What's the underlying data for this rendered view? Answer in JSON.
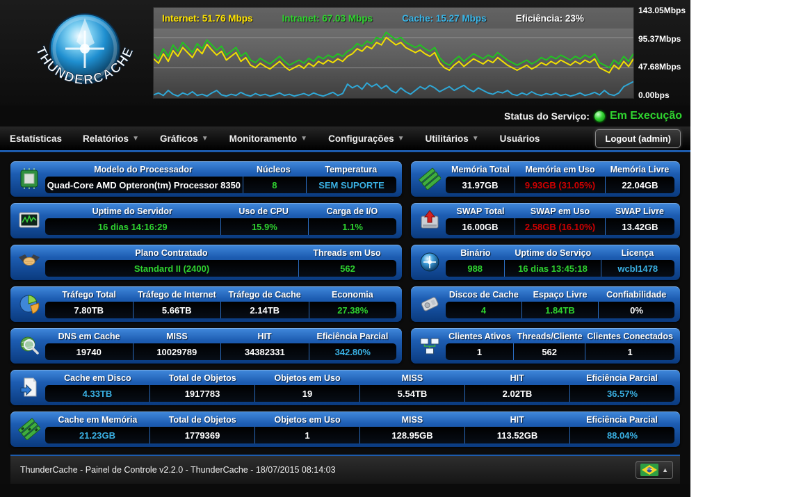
{
  "logo": {
    "text": "THUNDERCACHE"
  },
  "chart": {
    "type": "line",
    "max": 143.05,
    "legend": [
      {
        "name": "internet",
        "text": "Internet: 51.76 Mbps",
        "color": "#ffe400"
      },
      {
        "name": "intranet",
        "text": "Intranet: 67.03 Mbps",
        "color": "#2fd42f"
      },
      {
        "name": "cache",
        "text": "Cache: 15.27 Mbps",
        "color": "#3ab6e8"
      },
      {
        "name": "eficiencia",
        "text": "Eficiência: 23%",
        "color": "#ffffff"
      }
    ],
    "axis_labels": [
      "143.05Mbps",
      "95.37Mbps",
      "47.68Mbps",
      "0.00bps"
    ],
    "series": [
      {
        "name": "internet",
        "color": "#f2e000",
        "values": [
          62,
          55,
          70,
          58,
          75,
          66,
          80,
          72,
          64,
          78,
          70,
          85,
          76,
          68,
          74,
          60,
          66,
          72,
          58,
          64,
          52,
          48,
          55,
          50,
          46,
          52,
          58,
          50,
          44,
          48,
          52,
          47,
          55,
          50,
          58,
          54,
          60,
          56,
          62,
          58,
          66,
          70,
          78,
          74,
          82,
          78,
          88,
          84,
          96,
          90,
          84,
          88,
          80,
          76,
          72,
          76,
          70,
          66,
          72,
          56,
          48,
          44,
          52,
          58,
          50,
          56,
          62,
          58,
          54,
          60,
          56,
          64,
          58,
          52,
          48,
          44,
          48,
          52,
          46,
          50,
          56,
          52,
          58,
          54,
          60,
          56,
          52,
          58,
          54,
          60,
          56,
          62,
          48,
          44,
          40,
          52,
          46,
          58,
          50,
          62
        ]
      },
      {
        "name": "intranet",
        "color": "#21c421",
        "values": [
          70,
          62,
          78,
          66,
          84,
          74,
          88,
          80,
          72,
          86,
          78,
          92,
          84,
          76,
          82,
          68,
          74,
          80,
          66,
          72,
          60,
          56,
          63,
          58,
          54,
          60,
          66,
          58,
          52,
          56,
          60,
          55,
          63,
          58,
          66,
          62,
          68,
          64,
          70,
          66,
          74,
          78,
          86,
          82,
          90,
          86,
          96,
          92,
          104,
          98,
          92,
          96,
          88,
          84,
          80,
          84,
          78,
          74,
          80,
          64,
          56,
          52,
          60,
          66,
          58,
          64,
          70,
          66,
          62,
          68,
          64,
          72,
          66,
          60,
          56,
          52,
          56,
          60,
          54,
          58,
          64,
          60,
          66,
          62,
          68,
          64,
          60,
          66,
          62,
          68,
          64,
          70,
          56,
          52,
          48,
          60,
          54,
          66,
          58,
          70
        ]
      },
      {
        "name": "cache",
        "color": "#2fa7d6",
        "values": [
          5,
          8,
          4,
          12,
          6,
          3,
          8,
          5,
          10,
          4,
          6,
          3,
          8,
          12,
          5,
          3,
          6,
          4,
          9,
          5,
          3,
          7,
          4,
          6,
          3,
          5,
          8,
          4,
          6,
          3,
          5,
          7,
          4,
          8,
          5,
          3,
          6,
          9,
          4,
          7,
          22,
          16,
          20,
          14,
          24,
          18,
          22,
          15,
          20,
          12,
          8,
          16,
          10,
          6,
          12,
          18,
          14,
          20,
          16,
          10,
          14,
          18,
          12,
          16,
          20,
          14,
          10,
          16,
          12,
          8,
          6,
          10,
          8,
          12,
          6,
          4,
          8,
          5,
          10,
          6,
          4,
          7,
          5,
          8,
          4,
          6,
          3,
          5,
          8,
          4,
          6,
          9,
          5,
          12,
          6,
          4,
          8,
          18,
          22,
          26
        ]
      }
    ]
  },
  "status": {
    "label": "Status do Serviço:",
    "value": "Em Execução",
    "color": "#2fd42f"
  },
  "nav": {
    "items": [
      {
        "label": "Estatísticas",
        "dropdown": false
      },
      {
        "label": "Relatórios",
        "dropdown": true
      },
      {
        "label": "Gráficos",
        "dropdown": true
      },
      {
        "label": "Monitoramento",
        "dropdown": true
      },
      {
        "label": "Configurações",
        "dropdown": true
      },
      {
        "label": "Utilitários",
        "dropdown": true
      },
      {
        "label": "Usuários",
        "dropdown": false
      }
    ],
    "logout_label": "Logout (admin)"
  },
  "colors": {
    "green": "#2fd42f",
    "cyan": "#3ab1e4",
    "red": "#d10000",
    "white": "#ffffff",
    "accent_blue": "#1d5cae"
  },
  "cards": {
    "processor": {
      "icon": "cpu-icon",
      "cells": [
        {
          "label": "Modelo do Processador",
          "value": "Quad-Core AMD Opteron(tm) Processor 8350",
          "color": "#ffffff"
        },
        {
          "label": "Núcleos",
          "value": "8",
          "color": "#2fd42f"
        },
        {
          "label": "Temperatura",
          "value": "SEM SUPORTE",
          "color": "#3ab1e4"
        }
      ]
    },
    "memoria": {
      "icon": "memory-icon",
      "cells": [
        {
          "label": "Memória Total",
          "value": "31.97GB",
          "color": "#ffffff"
        },
        {
          "label": "Memória em Uso",
          "value": "9.93GB (31.05%)",
          "color": "#d10000"
        },
        {
          "label": "Memória Livre",
          "value": "22.04GB",
          "color": "#ffffff"
        }
      ]
    },
    "uptime": {
      "icon": "uptime-monitor-icon",
      "cells": [
        {
          "label": "Uptime do Servidor",
          "value": "16 dias 14:16:29",
          "color": "#2fd42f"
        },
        {
          "label": "Uso de CPU",
          "value": "15.9%",
          "color": "#2fd42f"
        },
        {
          "label": "Carga de I/O",
          "value": "1.1%",
          "color": "#2fd42f"
        }
      ]
    },
    "swap": {
      "icon": "swap-disk-icon",
      "cells": [
        {
          "label": "SWAP Total",
          "value": "16.00GB",
          "color": "#ffffff"
        },
        {
          "label": "SWAP em Uso",
          "value": "2.58GB (16.10%)",
          "color": "#d10000"
        },
        {
          "label": "SWAP Livre",
          "value": "13.42GB",
          "color": "#ffffff"
        }
      ]
    },
    "plano": {
      "icon": "handshake-icon",
      "cells": [
        {
          "label": "Plano Contratado",
          "value": "Standard II (2400)",
          "color": "#2fd42f"
        },
        {
          "label": "Threads em Uso",
          "value": "562",
          "color": "#2fd42f"
        }
      ]
    },
    "binario": {
      "icon": "sphere-icon",
      "cells": [
        {
          "label": "Binário",
          "value": "988",
          "color": "#2fd42f"
        },
        {
          "label": "Uptime do Serviço",
          "value": "16 dias 13:45:18",
          "color": "#2fd42f"
        },
        {
          "label": "Licença",
          "value": "wcbl1478",
          "color": "#3ab1e4"
        }
      ]
    },
    "trafego": {
      "icon": "pie-chart-icon",
      "cells": [
        {
          "label": "Tráfego Total",
          "value": "7.80TB",
          "color": "#ffffff"
        },
        {
          "label": "Tráfego de Internet",
          "value": "5.66TB",
          "color": "#ffffff"
        },
        {
          "label": "Tráfego de Cache",
          "value": "2.14TB",
          "color": "#ffffff"
        },
        {
          "label": "Economia",
          "value": "27.38%",
          "color": "#2fd42f"
        }
      ]
    },
    "discos": {
      "icon": "hard-disk-icon",
      "cells": [
        {
          "label": "Discos de Cache",
          "value": "4",
          "color": "#2fd42f"
        },
        {
          "label": "Espaço Livre",
          "value": "1.84TB",
          "color": "#2fd42f"
        },
        {
          "label": "Confiabilidade",
          "value": "0%",
          "color": "#ffffff"
        }
      ]
    },
    "dns": {
      "icon": "dns-search-icon",
      "cells": [
        {
          "label": "DNS em Cache",
          "value": "19740",
          "color": "#ffffff"
        },
        {
          "label": "MISS",
          "value": "10029789",
          "color": "#ffffff"
        },
        {
          "label": "HIT",
          "value": "34382331",
          "color": "#ffffff"
        },
        {
          "label": "Eficiência Parcial",
          "value": "342.80%",
          "color": "#3ab1e4"
        }
      ]
    },
    "clientes": {
      "icon": "network-clients-icon",
      "cells": [
        {
          "label": "Clientes Ativos",
          "value": "1",
          "color": "#ffffff"
        },
        {
          "label": "Threads/Cliente",
          "value": "562",
          "color": "#ffffff"
        },
        {
          "label": "Clientes Conectados",
          "value": "1",
          "color": "#ffffff"
        }
      ]
    },
    "cache_disco": {
      "icon": "cache-page-icon",
      "cells": [
        {
          "label": "Cache em Disco",
          "value": "4.33TB",
          "color": "#3ab1e4"
        },
        {
          "label": "Total de Objetos",
          "value": "1917783",
          "color": "#ffffff"
        },
        {
          "label": "Objetos em Uso",
          "value": "19",
          "color": "#ffffff"
        },
        {
          "label": "MISS",
          "value": "5.54TB",
          "color": "#ffffff"
        },
        {
          "label": "HIT",
          "value": "2.02TB",
          "color": "#ffffff"
        },
        {
          "label": "Eficiência Parcial",
          "value": "36.57%",
          "color": "#3ab1e4"
        }
      ]
    },
    "cache_memoria": {
      "icon": "memory-chips-icon",
      "cells": [
        {
          "label": "Cache em Memória",
          "value": "21.23GB",
          "color": "#3ab1e4"
        },
        {
          "label": "Total de Objetos",
          "value": "1779369",
          "color": "#ffffff"
        },
        {
          "label": "Objetos em Uso",
          "value": "1",
          "color": "#ffffff"
        },
        {
          "label": "MISS",
          "value": "128.95GB",
          "color": "#ffffff"
        },
        {
          "label": "HIT",
          "value": "113.52GB",
          "color": "#ffffff"
        },
        {
          "label": "Eficiência Parcial",
          "value": "88.04%",
          "color": "#3ab1e4"
        }
      ]
    }
  },
  "footer": {
    "text": "ThunderCache - Painel de Controle v2.2.0 - ThunderCache - 18/07/2015 08:14:03",
    "language_icon": "brazil-flag-icon"
  }
}
